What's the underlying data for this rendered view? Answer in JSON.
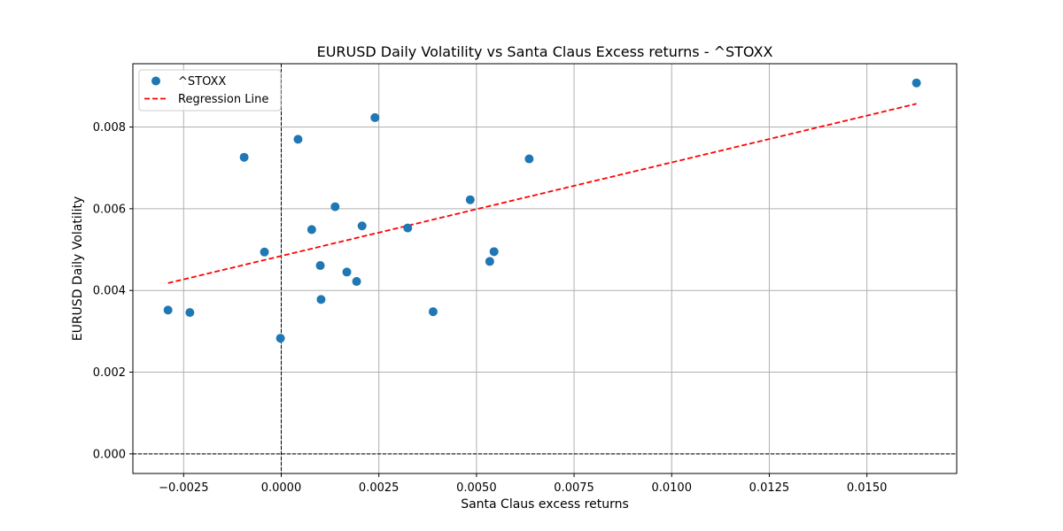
{
  "chart_data": {
    "type": "scatter",
    "title": "EURUSD Daily Volatility vs Santa Claus Excess returns - ^STOXX",
    "xlabel": "Santa Claus excess returns",
    "ylabel": "EURUSD Daily Volatility",
    "xlim": [
      -0.0038,
      0.0173
    ],
    "ylim": [
      -0.00048,
      0.00955
    ],
    "xticks": [
      -0.0025,
      0.0,
      0.0025,
      0.005,
      0.0075,
      0.01,
      0.0125,
      0.015
    ],
    "xtick_labels": [
      "−0.0025",
      "0.0000",
      "0.0025",
      "0.0050",
      "0.0075",
      "0.0100",
      "0.0125",
      "0.0150"
    ],
    "yticks": [
      0.0,
      0.002,
      0.004,
      0.006,
      0.008
    ],
    "ytick_labels": [
      "0.000",
      "0.002",
      "0.004",
      "0.006",
      "0.008"
    ],
    "grid": true,
    "legend_position": "top-left",
    "series": [
      {
        "name": "^STOXX",
        "kind": "scatter",
        "color": "#1f77b4",
        "points": [
          [
            -0.0029,
            0.00352
          ],
          [
            -0.00234,
            0.00346
          ],
          [
            -0.00095,
            0.00726
          ],
          [
            -0.00043,
            0.00494
          ],
          [
            -2e-05,
            0.00283
          ],
          [
            0.00043,
            0.0077
          ],
          [
            0.00078,
            0.00549
          ],
          [
            0.001,
            0.00461
          ],
          [
            0.00102,
            0.00378
          ],
          [
            0.00138,
            0.00605
          ],
          [
            0.00168,
            0.00445
          ],
          [
            0.00193,
            0.00422
          ],
          [
            0.00207,
            0.00558
          ],
          [
            0.0024,
            0.00823
          ],
          [
            0.00324,
            0.00553
          ],
          [
            0.00389,
            0.00348
          ],
          [
            0.00484,
            0.00622
          ],
          [
            0.00534,
            0.00471
          ],
          [
            0.00545,
            0.00495
          ],
          [
            0.00635,
            0.00722
          ],
          [
            0.01627,
            0.00908
          ]
        ]
      },
      {
        "name": "Regression Line",
        "kind": "line",
        "style": "dashed",
        "color": "#ff0000",
        "points": [
          [
            -0.0029,
            0.00418
          ],
          [
            0.01627,
            0.00857
          ]
        ]
      }
    ],
    "reference_lines": {
      "vertical_x": 0.0,
      "horizontal_y": 0.0,
      "color": "#000000",
      "style": "dashed"
    }
  }
}
